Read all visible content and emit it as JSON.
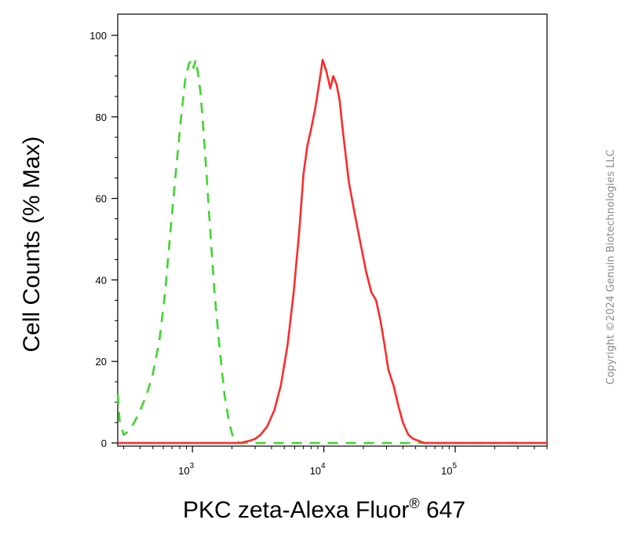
{
  "chart_data": {
    "type": "line",
    "title": "",
    "xlabel": "PKC zeta-Alexa Fluor",
    "xlabel_superscript": "®",
    "xlabel_suffix": " 647",
    "ylabel": "Cell Counts (% Max)",
    "x_scale": "log",
    "xlim": [
      270,
      500000
    ],
    "ylim": [
      0,
      100
    ],
    "y_ticks": [
      0,
      20,
      40,
      60,
      80,
      100
    ],
    "x_ticks": [
      {
        "value": 1000,
        "base": "10",
        "exp": "3"
      },
      {
        "value": 10000,
        "base": "10",
        "exp": "4"
      },
      {
        "value": 100000,
        "base": "10",
        "exp": "5"
      }
    ],
    "grid": false,
    "legend": "none",
    "series": [
      {
        "color": "#3dd62b",
        "style": "dashed",
        "x": [
          270,
          280,
          300,
          330,
          360,
          400,
          450,
          500,
          560,
          620,
          680,
          750,
          820,
          880,
          940,
          990,
          1020,
          1060,
          1100,
          1150,
          1200,
          1280,
          1380,
          1480,
          1600,
          1750,
          1900,
          2050,
          2300,
          3000,
          5000,
          10000,
          30000,
          100000,
          500000
        ],
        "y": [
          12,
          5,
          2,
          3,
          5,
          8,
          12,
          17,
          25,
          37,
          52,
          67,
          80,
          89,
          93,
          94,
          92,
          94,
          91,
          86,
          79,
          66,
          50,
          36,
          24,
          12,
          5,
          1,
          0,
          0,
          0,
          0,
          0,
          0,
          0
        ]
      },
      {
        "color": "#ff2a2a",
        "style": "solid",
        "x": [
          270,
          1000,
          2300,
          2700,
          3000,
          3300,
          3700,
          4200,
          4700,
          5300,
          5900,
          6500,
          7000,
          7500,
          8000,
          8600,
          9200,
          9800,
          10500,
          11200,
          11800,
          12500,
          13200,
          13800,
          14500,
          15500,
          17000,
          19000,
          21000,
          23000,
          25000,
          27000,
          29000,
          31000,
          34000,
          37000,
          40000,
          44000,
          48000,
          53000,
          58000,
          65000,
          80000,
          150000,
          500000
        ],
        "y": [
          0,
          0,
          0,
          0.5,
          1,
          2,
          4,
          8,
          14,
          24,
          37,
          52,
          66,
          73,
          77,
          82,
          88,
          94,
          91,
          87,
          90,
          88,
          84,
          78,
          72,
          64,
          57,
          49,
          42,
          37,
          35,
          30,
          24,
          18,
          14,
          9,
          5,
          2,
          1,
          0.5,
          0,
          0,
          0,
          0,
          0
        ]
      }
    ]
  },
  "copyright": "Copyright ©2024 Genuin Biotechnologies LLC"
}
